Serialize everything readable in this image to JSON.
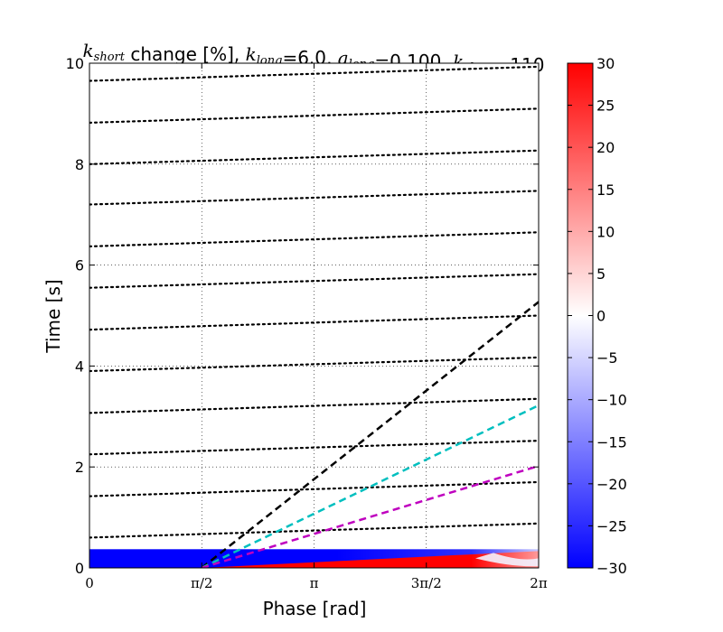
{
  "chart_data": {
    "type": "heatmap",
    "title": {
      "parts": [
        {
          "text": "k",
          "style": "math"
        },
        {
          "text": "short",
          "style": "sub"
        },
        {
          "text": " change [%], ",
          "style": "plain"
        },
        {
          "text": "k",
          "style": "math"
        },
        {
          "text": "long",
          "style": "sub"
        },
        {
          "text": "=6.0, ",
          "style": "plain"
        },
        {
          "text": "a",
          "style": "math"
        },
        {
          "text": "long",
          "style": "sub"
        },
        {
          "text": "=0.100, ",
          "style": "plain"
        },
        {
          "text": "k",
          "style": "math"
        },
        {
          "text": "short",
          "style": "sub"
        },
        {
          "text": "=110",
          "style": "plain"
        }
      ]
    },
    "xlabel": "Phase [rad]",
    "ylabel": "Time [s]",
    "xlim": [
      0,
      6.2832
    ],
    "ylim": [
      0,
      10
    ],
    "grid": true,
    "x_ticks": [
      {
        "value": 0,
        "label": "0"
      },
      {
        "value": 1.5708,
        "label": "π/2"
      },
      {
        "value": 3.1416,
        "label": "π"
      },
      {
        "value": 4.7124,
        "label": "3π/2"
      },
      {
        "value": 6.2832,
        "label": "2π"
      }
    ],
    "y_ticks": [
      {
        "value": 0,
        "label": "0"
      },
      {
        "value": 2,
        "label": "2"
      },
      {
        "value": 4,
        "label": "4"
      },
      {
        "value": 6,
        "label": "6"
      },
      {
        "value": 8,
        "label": "8"
      },
      {
        "value": 10,
        "label": "10"
      }
    ],
    "colorbar": {
      "min": -30,
      "max": 30,
      "colormap": "bwr",
      "colors": {
        "low": "#0000ff",
        "mid": "#ffffff",
        "high": "#ff0000"
      },
      "ticks": [
        30,
        25,
        20,
        15,
        10,
        5,
        0,
        -5,
        -10,
        -15,
        -20,
        -25,
        -30
      ],
      "tick_labels": [
        "30",
        "25",
        "20",
        "15",
        "10",
        "5",
        "0",
        "−5",
        "−10",
        "−15",
        "−20",
        "−25",
        "−30"
      ]
    },
    "heatmap_band": {
      "time_range": [
        0,
        0.37
      ],
      "description_values": "blue (≈-30%) at low phase fading across; red (≈+30%) wedge growing toward 2π"
    },
    "dotted_lines": {
      "color": "#000000",
      "style": "dotted",
      "y_at_x0": [
        0.6,
        1.42,
        2.25,
        3.07,
        3.9,
        4.72,
        5.55,
        6.37,
        7.2,
        8.0,
        8.82,
        9.65
      ],
      "y_at_x2pi": [
        0.88,
        1.7,
        2.52,
        3.35,
        4.17,
        5.0,
        5.82,
        6.65,
        7.47,
        8.27,
        9.1,
        9.93
      ]
    },
    "dashed_lines": [
      {
        "color": "#000000",
        "x": [
          1.57,
          6.2832
        ],
        "y": [
          0,
          5.27
        ]
      },
      {
        "color": "#00bfbf",
        "x": [
          1.57,
          6.2832
        ],
        "y": [
          0,
          3.22
        ]
      },
      {
        "color": "#bf00bf",
        "x": [
          1.57,
          6.2832
        ],
        "y": [
          0,
          2.02
        ]
      }
    ]
  }
}
